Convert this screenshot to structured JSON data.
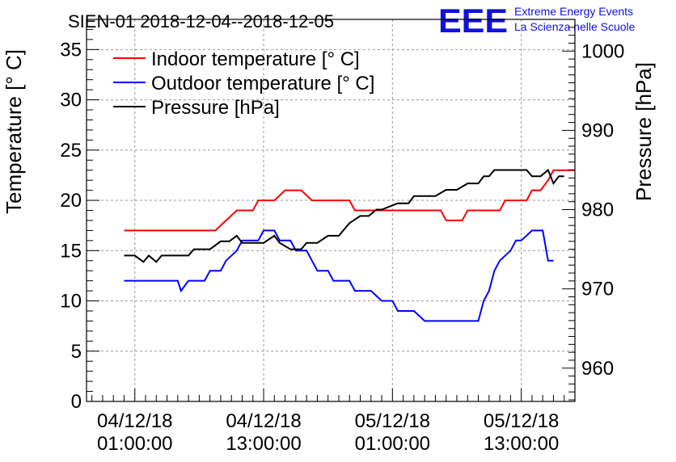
{
  "chart_data": {
    "type": "line",
    "title": "SIEN-01 2018-12-04--2018-12-05",
    "ylabel_left": "Temperature [° C]",
    "ylabel_right": "Pressure [hPa]",
    "ylim_left": [
      0,
      38
    ],
    "ylim_right": [
      955.8,
      1004
    ],
    "xlim_hours": [
      -3.5,
      42.0
    ],
    "grid": true,
    "legend_position": "top-left",
    "x_ticks": [
      {
        "hour": 1,
        "line1": "04/12/18",
        "line2": "01:00:00"
      },
      {
        "hour": 13,
        "line1": "04/12/18",
        "line2": "13:00:00"
      },
      {
        "hour": 25,
        "line1": "05/12/18",
        "line2": "01:00:00"
      },
      {
        "hour": 37,
        "line1": "05/12/18",
        "line2": "13:00:00"
      }
    ],
    "y_ticks_left": [
      "0",
      "5",
      "10",
      "15",
      "20",
      "25",
      "30",
      "35"
    ],
    "y_ticks_right": [
      "960",
      "970",
      "980",
      "990",
      "1000"
    ],
    "series": [
      {
        "name": "Indoor temperature [° C]",
        "color": "#ff0000",
        "axis": "left",
        "points": [
          [
            0,
            17
          ],
          [
            8.5,
            17
          ],
          [
            9.5,
            18
          ],
          [
            10.5,
            19
          ],
          [
            12,
            19
          ],
          [
            12.5,
            20
          ],
          [
            14,
            20
          ],
          [
            15,
            21
          ],
          [
            16.5,
            21
          ],
          [
            17.5,
            20
          ],
          [
            21,
            20
          ],
          [
            21.5,
            19
          ],
          [
            29.5,
            19
          ],
          [
            30,
            18
          ],
          [
            31.5,
            18
          ],
          [
            32,
            19
          ],
          [
            35,
            19
          ],
          [
            35.5,
            20
          ],
          [
            37.5,
            20
          ],
          [
            38,
            21
          ],
          [
            38.8,
            21
          ],
          [
            39.5,
            22
          ],
          [
            40,
            23
          ],
          [
            42,
            23
          ]
        ]
      },
      {
        "name": "Outdoor temperature [° C]",
        "color": "#0000ff",
        "axis": "left",
        "points": [
          [
            0,
            12
          ],
          [
            5,
            12
          ],
          [
            5.3,
            11
          ],
          [
            6,
            12
          ],
          [
            7.5,
            12
          ],
          [
            8,
            13
          ],
          [
            9,
            13
          ],
          [
            9.5,
            14
          ],
          [
            10.5,
            15
          ],
          [
            11,
            16
          ],
          [
            12.5,
            16
          ],
          [
            13,
            17
          ],
          [
            14,
            17
          ],
          [
            14.5,
            16
          ],
          [
            15.5,
            16
          ],
          [
            16,
            15
          ],
          [
            17,
            15
          ],
          [
            17.5,
            14
          ],
          [
            18,
            13
          ],
          [
            19,
            13
          ],
          [
            19.5,
            12
          ],
          [
            21,
            12
          ],
          [
            21.5,
            11
          ],
          [
            23,
            11
          ],
          [
            24,
            10
          ],
          [
            25,
            10
          ],
          [
            25.5,
            9
          ],
          [
            27,
            9
          ],
          [
            28,
            8
          ],
          [
            33,
            8
          ],
          [
            33.5,
            10
          ],
          [
            34,
            11
          ],
          [
            34.5,
            13
          ],
          [
            35,
            14
          ],
          [
            36,
            15
          ],
          [
            36.5,
            16
          ],
          [
            37,
            16
          ],
          [
            38,
            17
          ],
          [
            39,
            17
          ],
          [
            39.5,
            14
          ],
          [
            40,
            14
          ]
        ]
      },
      {
        "name": "Pressure [hPa]",
        "color": "#000000",
        "axis": "right",
        "points": [
          [
            0,
            974.2
          ],
          [
            1,
            974.2
          ],
          [
            1.8,
            973.4
          ],
          [
            2.3,
            974.2
          ],
          [
            3,
            973.4
          ],
          [
            3.5,
            974.2
          ],
          [
            6,
            974.2
          ],
          [
            6.5,
            975
          ],
          [
            8,
            975
          ],
          [
            9,
            976
          ],
          [
            9.8,
            976
          ],
          [
            10.5,
            976.7
          ],
          [
            11,
            975.8
          ],
          [
            13,
            975.8
          ],
          [
            14,
            976.7
          ],
          [
            14.5,
            975.8
          ],
          [
            15.5,
            975
          ],
          [
            16.5,
            975
          ],
          [
            17,
            975.8
          ],
          [
            18,
            975.8
          ],
          [
            19,
            976.7
          ],
          [
            20,
            976.7
          ],
          [
            21,
            978.3
          ],
          [
            22,
            979.2
          ],
          [
            22.8,
            979.2
          ],
          [
            23.5,
            980
          ],
          [
            24,
            980
          ],
          [
            25.5,
            980.8
          ],
          [
            26.5,
            980.8
          ],
          [
            27,
            981.7
          ],
          [
            29,
            981.7
          ],
          [
            30,
            982.5
          ],
          [
            31,
            982.5
          ],
          [
            32,
            983.3
          ],
          [
            33,
            983.3
          ],
          [
            33.5,
            984.2
          ],
          [
            34,
            984.2
          ],
          [
            34.5,
            985
          ],
          [
            37.5,
            985
          ],
          [
            38,
            984.2
          ],
          [
            38.8,
            984.2
          ],
          [
            39.5,
            985
          ],
          [
            40,
            983.3
          ],
          [
            40.5,
            984.2
          ],
          [
            41,
            984.2
          ]
        ]
      }
    ]
  },
  "logo": {
    "mark": "EEE",
    "line1": "Extreme Energy Events",
    "line2": "La Scienza nelle Scuole",
    "color": "#1010e0"
  }
}
